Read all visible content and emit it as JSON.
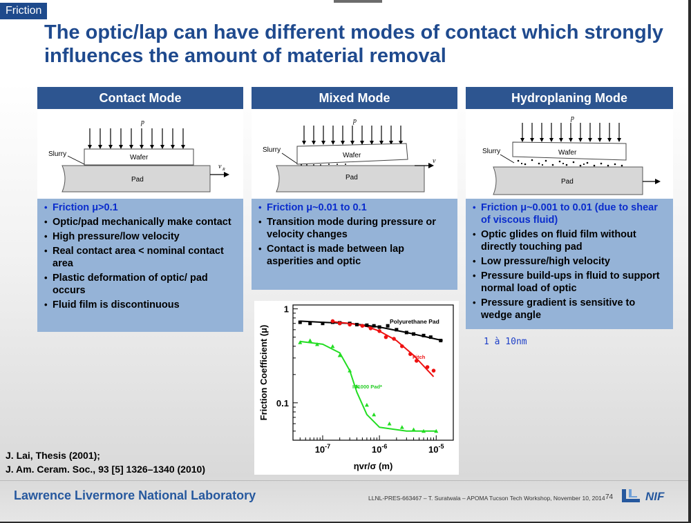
{
  "section_tag": "Friction",
  "title": "The optic/lap can have different modes of contact which strongly influences the amount of material removal",
  "columns": [
    {
      "header": "Contact Mode",
      "diagram": {
        "p_label": "p",
        "slurry_label": "Slurry",
        "wafer_label": "Wafer",
        "pad_label": "Pad",
        "v_label": "v",
        "v_sub": "R"
      },
      "bullets": [
        "Friction μ>0.1",
        "Optic/pad mechanically make contact",
        "High pressure/low velocity",
        "Real contact area < nominal contact area",
        "Plastic deformation of optic/ pad occurs",
        "Fluid film is discontinuous"
      ]
    },
    {
      "header": "Mixed Mode",
      "diagram": {
        "p_label": "p",
        "slurry_label": "Slurry",
        "wafer_label": "Wafer",
        "pad_label": "Pad",
        "v_label": "v"
      },
      "bullets": [
        "Friction μ~0.01 to 0.1",
        "Transition mode during pressure or velocity changes",
        "Contact is made between lap asperities and optic"
      ]
    },
    {
      "header": "Hydroplaning Mode",
      "diagram": {
        "p_label": "p",
        "slurry_label": "Slurry",
        "wafer_label": "Wafer",
        "pad_label": "Pad"
      },
      "bullets": [
        "Friction μ~0.001 to 0.01 (due to shear of viscous fluid)",
        "Optic glides on fluid film without directly touching pad",
        "Low pressure/high velocity",
        "Pressure build-ups in fluid to support normal load of optic",
        "Pressure gradient is sensitive to wedge angle"
      ]
    }
  ],
  "note": "1 à 10nm",
  "chart_data": {
    "type": "scatter",
    "xlabel": "ηvr/σ (m)",
    "ylabel": "Friction Coefficient (μ)",
    "x_scale": "log",
    "y_scale": "log",
    "xlim": [
      3e-08,
      2e-05
    ],
    "ylim": [
      0.04,
      1.1
    ],
    "x_ticks": [
      {
        "value": 1e-07,
        "base": "10",
        "exp": "-7"
      },
      {
        "value": 1e-06,
        "base": "10",
        "exp": "-6"
      },
      {
        "value": 1e-05,
        "base": "10",
        "exp": "-5"
      }
    ],
    "y_ticks": [
      {
        "value": 1,
        "label": "1"
      },
      {
        "value": 0.1,
        "label": "0.1"
      }
    ],
    "series": [
      {
        "name": "Polyurethane Pad",
        "color": "#000000",
        "marker": "square",
        "points": [
          [
            4e-08,
            0.72
          ],
          [
            6e-08,
            0.7
          ],
          [
            1e-07,
            0.7
          ],
          [
            1.5e-07,
            0.72
          ],
          [
            2e-07,
            0.71
          ],
          [
            3e-07,
            0.7
          ],
          [
            4e-07,
            0.68
          ],
          [
            6e-07,
            0.67
          ],
          [
            8e-07,
            0.66
          ],
          [
            1e-06,
            0.64
          ],
          [
            1.4e-06,
            0.66
          ],
          [
            2e-06,
            0.6
          ],
          [
            3e-06,
            0.56
          ],
          [
            4e-06,
            0.54
          ],
          [
            6e-06,
            0.52
          ],
          [
            8e-06,
            0.5
          ],
          [
            1.2e-05,
            0.46
          ]
        ],
        "fit": [
          [
            4e-08,
            0.74
          ],
          [
            1e-07,
            0.72
          ],
          [
            3e-07,
            0.7
          ],
          [
            1e-06,
            0.64
          ],
          [
            3e-06,
            0.56
          ],
          [
            1.3e-05,
            0.46
          ]
        ]
      },
      {
        "name": "Pitch",
        "color": "#ee1111",
        "marker": "circle",
        "points": [
          [
            1.5e-07,
            0.74
          ],
          [
            2e-07,
            0.7
          ],
          [
            3e-07,
            0.68
          ],
          [
            5e-07,
            0.66
          ],
          [
            7e-07,
            0.62
          ],
          [
            1e-06,
            0.58
          ],
          [
            1.3e-06,
            0.5
          ],
          [
            1.8e-06,
            0.48
          ],
          [
            2.5e-06,
            0.4
          ],
          [
            3.5e-06,
            0.33
          ],
          [
            4.5e-06,
            0.28
          ],
          [
            7e-06,
            0.24
          ],
          [
            9e-06,
            0.22
          ]
        ],
        "fit": [
          [
            1.5e-07,
            0.73
          ],
          [
            3e-07,
            0.7
          ],
          [
            6e-07,
            0.65
          ],
          [
            1e-06,
            0.58
          ],
          [
            2e-06,
            0.46
          ],
          [
            4e-06,
            0.32
          ],
          [
            9e-06,
            0.19
          ]
        ]
      },
      {
        "name": "IC1000 Pad*",
        "color": "#22dd22",
        "marker": "triangle",
        "points": [
          [
            4e-08,
            0.44
          ],
          [
            6e-08,
            0.46
          ],
          [
            8e-08,
            0.42
          ],
          [
            1.5e-07,
            0.4
          ],
          [
            2e-07,
            0.32
          ],
          [
            3e-07,
            0.22
          ],
          [
            4e-07,
            0.15
          ],
          [
            6e-07,
            0.095
          ],
          [
            8e-07,
            0.075
          ],
          [
            1.5e-06,
            0.06
          ],
          [
            2.5e-06,
            0.055
          ],
          [
            4e-06,
            0.052
          ],
          [
            6e-06,
            0.05
          ],
          [
            1e-05,
            0.05
          ]
        ],
        "fit": [
          [
            4e-08,
            0.45
          ],
          [
            1e-07,
            0.42
          ],
          [
            2e-07,
            0.34
          ],
          [
            3e-07,
            0.22
          ],
          [
            4e-07,
            0.13
          ],
          [
            6e-07,
            0.075
          ],
          [
            1e-06,
            0.055
          ],
          [
            3e-06,
            0.05
          ],
          [
            1e-05,
            0.05
          ]
        ]
      }
    ]
  },
  "references": [
    "J. Lai, Thesis (2001);",
    "J. Am. Ceram. Soc., 93 [5] 1326–1340 (2010)"
  ],
  "footer": {
    "lab": "Lawrence Livermore National Laboratory",
    "text": "LLNL-PRES-663467 – T. Suratwala – APOMA Tucson Tech Workshop, November 10, 2014",
    "page": "74",
    "logo_text": "NIF"
  },
  "colors": {
    "header_blue": "#2d5590",
    "bullet_bg": "#95b3d7",
    "title_blue": "#1f4a8e",
    "highlight": "#0a2ccc"
  }
}
